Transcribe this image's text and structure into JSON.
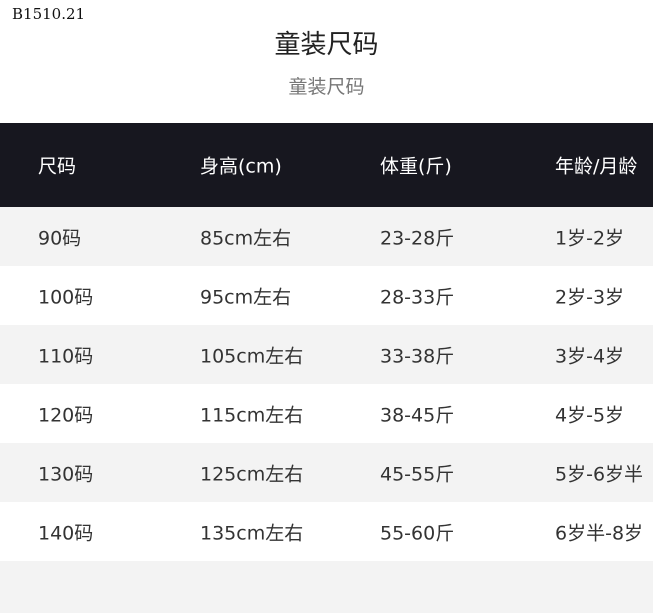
{
  "code": "B1510.21",
  "title": "童装尺码",
  "subtitle": "童装尺码",
  "table": {
    "headers": [
      "尺码",
      "身高(cm)",
      "体重(斤)",
      "年龄/月龄"
    ],
    "rows": [
      [
        "90码",
        "85cm左右",
        "23-28斤",
        "1岁-2岁"
      ],
      [
        "100码",
        "95cm左右",
        "28-33斤",
        "2岁-3岁"
      ],
      [
        "110码",
        "105cm左右",
        "33-38斤",
        "3岁-4岁"
      ],
      [
        "120码",
        "115cm左右",
        "38-45斤",
        "4岁-5岁"
      ],
      [
        "130码",
        "125cm左右",
        "45-55斤",
        "5岁-6岁半"
      ],
      [
        "140码",
        "135cm左右",
        "55-60斤",
        "6岁半-8岁"
      ]
    ]
  },
  "colors": {
    "header_bg": "#17171f",
    "stripe": "#f3f3f3"
  }
}
